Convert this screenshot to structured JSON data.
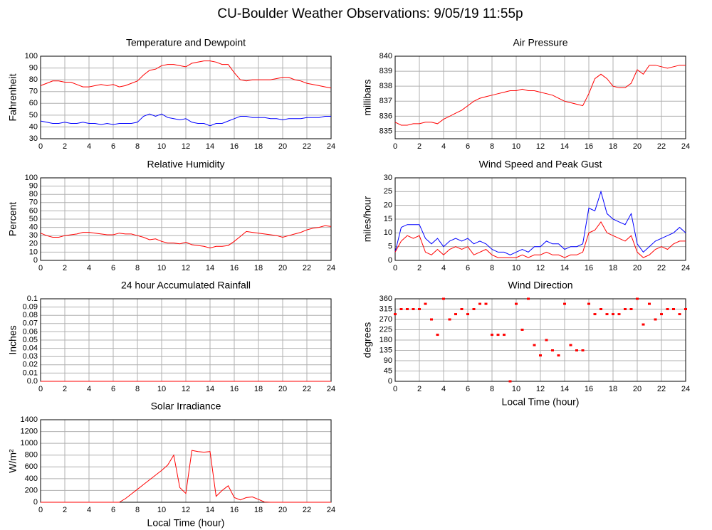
{
  "title": "CU-Boulder Weather Observations: 9/05/19 11:55p",
  "chart_data": [
    {
      "type": "line",
      "title": "Temperature and Dewpoint",
      "ylabel": "Fahrenheit",
      "x": [
        0,
        0.5,
        1,
        1.5,
        2,
        2.5,
        3,
        3.5,
        4,
        4.5,
        5,
        5.5,
        6,
        6.5,
        7,
        7.5,
        8,
        8.5,
        9,
        9.5,
        10,
        10.5,
        11,
        11.5,
        12,
        12.5,
        13,
        13.5,
        14,
        14.5,
        15,
        15.5,
        16,
        16.5,
        17,
        17.5,
        18,
        18.5,
        19,
        19.5,
        20,
        20.5,
        21,
        21.5,
        22,
        22.5,
        23,
        23.5,
        24
      ],
      "series": [
        {
          "color": "#ff0000",
          "values": [
            75,
            77,
            79,
            79,
            78,
            78,
            76,
            74,
            74,
            75,
            76,
            75,
            76,
            74,
            75,
            77,
            79,
            84,
            88,
            89,
            92,
            93,
            93,
            92,
            91,
            94,
            95,
            96,
            96,
            95,
            93,
            93,
            86,
            80,
            79,
            80,
            80,
            80,
            80,
            81,
            82,
            82,
            80,
            79,
            77,
            76,
            75,
            74,
            73
          ]
        },
        {
          "color": "#0000ff",
          "values": [
            45,
            44,
            43,
            43,
            44,
            43,
            43,
            44,
            43,
            43,
            42,
            43,
            42,
            43,
            43,
            43,
            44,
            49,
            51,
            49,
            51,
            48,
            47,
            46,
            47,
            44,
            43,
            43,
            41,
            43,
            43,
            45,
            47,
            49,
            49,
            48,
            48,
            48,
            47,
            47,
            46,
            47,
            47,
            47,
            48,
            48,
            48,
            49,
            49
          ]
        }
      ],
      "xlim": [
        0,
        24
      ],
      "xticks": [
        0,
        2,
        4,
        6,
        8,
        10,
        12,
        14,
        16,
        18,
        20,
        22,
        24
      ],
      "ylim": [
        30,
        100
      ],
      "yticks": [
        30,
        40,
        50,
        60,
        70,
        80,
        90,
        100
      ],
      "grid": true
    },
    {
      "type": "line",
      "title": "Air Pressure",
      "ylabel": "millibars",
      "x": [
        0,
        0.5,
        1,
        1.5,
        2,
        2.5,
        3,
        3.5,
        4,
        4.5,
        5,
        5.5,
        6,
        6.5,
        7,
        7.5,
        8,
        8.5,
        9,
        9.5,
        10,
        10.5,
        11,
        11.5,
        12,
        12.5,
        13,
        13.5,
        14,
        14.5,
        15,
        15.5,
        16,
        16.5,
        17,
        17.5,
        18,
        18.5,
        19,
        19.5,
        20,
        20.5,
        21,
        21.5,
        22,
        22.5,
        23,
        23.5,
        24
      ],
      "series": [
        {
          "color": "#ff0000",
          "values": [
            835.6,
            835.4,
            835.4,
            835.5,
            835.5,
            835.6,
            835.6,
            835.5,
            835.8,
            836.0,
            836.2,
            836.4,
            836.7,
            837.0,
            837.2,
            837.3,
            837.4,
            837.5,
            837.6,
            837.7,
            837.7,
            837.8,
            837.7,
            837.7,
            837.6,
            837.5,
            837.4,
            837.2,
            837.0,
            836.9,
            836.8,
            836.7,
            837.5,
            838.5,
            838.8,
            838.5,
            838.0,
            837.9,
            837.9,
            838.2,
            839.1,
            838.8,
            839.4,
            839.4,
            839.3,
            839.2,
            839.3,
            839.4,
            839.4
          ]
        }
      ],
      "xlim": [
        0,
        24
      ],
      "xticks": [
        0,
        2,
        4,
        6,
        8,
        10,
        12,
        14,
        16,
        18,
        20,
        22,
        24
      ],
      "ylim": [
        834.5,
        840
      ],
      "yticks": [
        835,
        836,
        837,
        838,
        839,
        840
      ],
      "grid": true
    },
    {
      "type": "line",
      "title": "Relative Humidity",
      "ylabel": "Percent",
      "x": [
        0,
        0.5,
        1,
        1.5,
        2,
        2.5,
        3,
        3.5,
        4,
        4.5,
        5,
        5.5,
        6,
        6.5,
        7,
        7.5,
        8,
        8.5,
        9,
        9.5,
        10,
        10.5,
        11,
        11.5,
        12,
        12.5,
        13,
        13.5,
        14,
        14.5,
        15,
        15.5,
        16,
        16.5,
        17,
        17.5,
        18,
        18.5,
        19,
        19.5,
        20,
        20.5,
        21,
        21.5,
        22,
        22.5,
        23,
        23.5,
        24
      ],
      "series": [
        {
          "color": "#ff0000",
          "values": [
            33,
            30,
            28,
            28,
            30,
            31,
            32,
            34,
            34,
            33,
            32,
            31,
            31,
            33,
            32,
            32,
            30,
            28,
            25,
            26,
            23,
            21,
            21,
            20,
            22,
            19,
            18,
            17,
            15,
            17,
            17,
            18,
            23,
            29,
            35,
            34,
            33,
            32,
            31,
            30,
            28,
            30,
            32,
            34,
            37,
            39,
            40,
            42,
            41
          ]
        }
      ],
      "xlim": [
        0,
        24
      ],
      "xticks": [
        0,
        2,
        4,
        6,
        8,
        10,
        12,
        14,
        16,
        18,
        20,
        22,
        24
      ],
      "ylim": [
        0,
        100
      ],
      "yticks": [
        0,
        10,
        20,
        30,
        40,
        50,
        60,
        70,
        80,
        90,
        100
      ],
      "grid": true
    },
    {
      "type": "line",
      "title": "Wind Speed and Peak Gust",
      "ylabel": "miles/hour",
      "x": [
        0,
        0.5,
        1,
        1.5,
        2,
        2.5,
        3,
        3.5,
        4,
        4.5,
        5,
        5.5,
        6,
        6.5,
        7,
        7.5,
        8,
        8.5,
        9,
        9.5,
        10,
        10.5,
        11,
        11.5,
        12,
        12.5,
        13,
        13.5,
        14,
        14.5,
        15,
        15.5,
        16,
        16.5,
        17,
        17.5,
        18,
        18.5,
        19,
        19.5,
        20,
        20.5,
        21,
        21.5,
        22,
        22.5,
        23,
        23.5,
        24
      ],
      "series": [
        {
          "color": "#0000ff",
          "values": [
            3,
            12,
            13,
            13,
            13,
            8,
            6,
            8,
            5,
            7,
            8,
            7,
            8,
            6,
            7,
            6,
            4,
            3,
            3,
            2,
            3,
            4,
            3,
            5,
            5,
            7,
            6,
            6,
            4,
            5,
            5,
            6,
            19,
            18,
            25,
            17,
            15,
            14,
            13,
            17,
            6,
            3,
            5,
            7,
            8,
            9,
            10,
            12,
            10
          ]
        },
        {
          "color": "#ff0000",
          "values": [
            3,
            7,
            9,
            8,
            9,
            3,
            2,
            4,
            2,
            4,
            5,
            4,
            5,
            2,
            3,
            4,
            2,
            1,
            1,
            1,
            1,
            2,
            1,
            2,
            2,
            3,
            2,
            2,
            1,
            2,
            2,
            3,
            10,
            11,
            14,
            10,
            9,
            8,
            7,
            9,
            3,
            1,
            2,
            4,
            5,
            4,
            6,
            7,
            7
          ]
        }
      ],
      "xlim": [
        0,
        24
      ],
      "xticks": [
        0,
        2,
        4,
        6,
        8,
        10,
        12,
        14,
        16,
        18,
        20,
        22,
        24
      ],
      "ylim": [
        0,
        30
      ],
      "yticks": [
        0,
        5,
        10,
        15,
        20,
        25,
        30
      ],
      "grid": true
    },
    {
      "type": "line",
      "title": "24 hour Accumulated Rainfall",
      "ylabel": "Inches",
      "x": [
        0,
        24
      ],
      "series": [
        {
          "color": "#ff0000",
          "values": [
            0,
            0
          ]
        }
      ],
      "xlim": [
        0,
        24
      ],
      "xticks": [
        0,
        2,
        4,
        6,
        8,
        10,
        12,
        14,
        16,
        18,
        20,
        22,
        24
      ],
      "ylim": [
        0,
        0.1
      ],
      "yticks": [
        {
          "value": 0,
          "label": "0.0"
        },
        0.01,
        0.02,
        0.03,
        0.04,
        0.05,
        0.06,
        0.07,
        0.08,
        0.09,
        0.1
      ],
      "grid": true
    },
    {
      "type": "scatter",
      "title": "Wind Direction",
      "ylabel": "degrees",
      "xlabel": "Local Time (hour)",
      "x": [
        0,
        0.5,
        1,
        1.5,
        2,
        2.5,
        3,
        3.5,
        4,
        4.5,
        5,
        5.5,
        6,
        6.5,
        7,
        7.5,
        8,
        8.5,
        9,
        9.5,
        10,
        10.5,
        11,
        11.5,
        12,
        12.5,
        13,
        13.5,
        14,
        14.5,
        15,
        15.5,
        16,
        16.5,
        17,
        17.5,
        18,
        18.5,
        19,
        19.5,
        20,
        20.5,
        21,
        21.5,
        22,
        22.5,
        23,
        23.5,
        24
      ],
      "series": [
        {
          "color": "#ff0000",
          "values": [
            293,
            315,
            315,
            315,
            315,
            338,
            270,
            203,
            360,
            270,
            293,
            315,
            293,
            315,
            338,
            338,
            203,
            203,
            203,
            0,
            338,
            225,
            360,
            158,
            113,
            180,
            135,
            113,
            338,
            158,
            135,
            135,
            338,
            293,
            315,
            293,
            293,
            293,
            315,
            315,
            360,
            248,
            338,
            270,
            293,
            315,
            315,
            293,
            315
          ]
        }
      ],
      "xlim": [
        0,
        24
      ],
      "xticks": [
        0,
        2,
        4,
        6,
        8,
        10,
        12,
        14,
        16,
        18,
        20,
        22,
        24
      ],
      "ylim": [
        0,
        360
      ],
      "yticks": [
        0,
        45,
        90,
        135,
        180,
        225,
        270,
        315,
        360
      ],
      "grid": true
    },
    {
      "type": "line",
      "title": "Solar Irradiance",
      "ylabel": "W/m²",
      "xlabel": "Local Time (hour)",
      "x": [
        0,
        0.5,
        1,
        1.5,
        2,
        2.5,
        3,
        3.5,
        4,
        4.5,
        5,
        5.5,
        6,
        6.5,
        7,
        7.5,
        8,
        8.5,
        9,
        9.5,
        10,
        10.5,
        11,
        11.5,
        12,
        12.5,
        13,
        13.5,
        14,
        14.5,
        15,
        15.5,
        16,
        16.5,
        17,
        17.5,
        18,
        18.5,
        19,
        19.5,
        20,
        20.5,
        21,
        21.5,
        22,
        22.5,
        23,
        23.5,
        24
      ],
      "series": [
        {
          "color": "#ff0000",
          "values": [
            0,
            0,
            0,
            0,
            0,
            0,
            0,
            0,
            0,
            0,
            0,
            0,
            0,
            0,
            60,
            140,
            220,
            300,
            380,
            460,
            540,
            630,
            800,
            250,
            150,
            880,
            860,
            850,
            860,
            100,
            200,
            280,
            80,
            40,
            80,
            90,
            50,
            5,
            0,
            0,
            0,
            0,
            0,
            0,
            0,
            0,
            0,
            0,
            0
          ]
        }
      ],
      "xlim": [
        0,
        24
      ],
      "xticks": [
        0,
        2,
        4,
        6,
        8,
        10,
        12,
        14,
        16,
        18,
        20,
        22,
        24
      ],
      "ylim": [
        0,
        1400
      ],
      "yticks": [
        0,
        200,
        400,
        600,
        800,
        1000,
        1200,
        1400
      ],
      "grid": true
    }
  ]
}
